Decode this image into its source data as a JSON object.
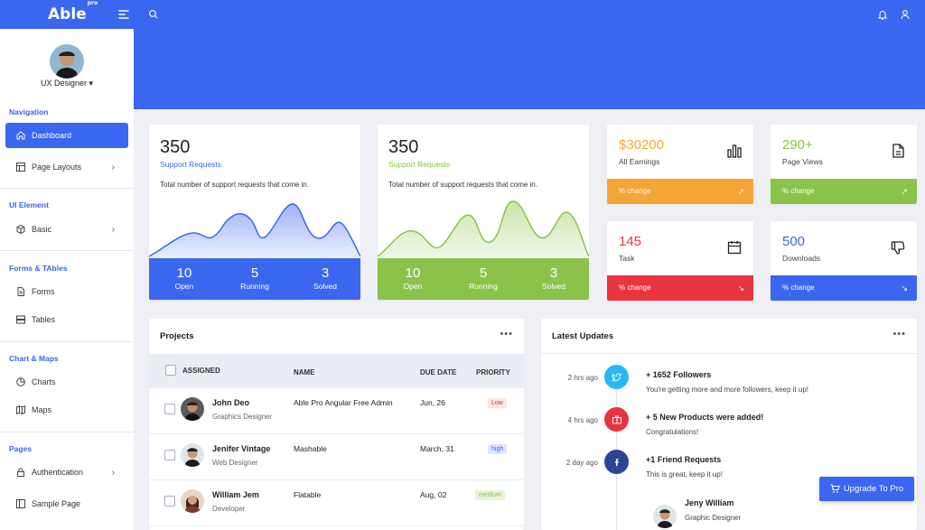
{
  "app": {
    "logo": "Able",
    "logo_badge": "pro"
  },
  "user": {
    "name": "UX Designer ▾"
  },
  "sidebar": {
    "sections": [
      {
        "caption": "Navigation",
        "items": [
          {
            "label": "Dashboard",
            "active": true
          },
          {
            "label": "Page Layouts",
            "has_children": true
          }
        ]
      },
      {
        "caption": "UI Element",
        "items": [
          {
            "label": "Basic",
            "has_children": true
          }
        ]
      },
      {
        "caption": "Forms & TAbles",
        "items": [
          {
            "label": "Forms"
          },
          {
            "label": "Tables"
          }
        ]
      },
      {
        "caption": "Chart & Maps",
        "items": [
          {
            "label": "Charts"
          },
          {
            "label": "Maps"
          }
        ]
      },
      {
        "caption": "Pages",
        "items": [
          {
            "label": "Authentication",
            "has_children": true
          },
          {
            "label": "Sample Page"
          }
        ]
      }
    ]
  },
  "support_cards": [
    {
      "value": "350",
      "subtitle": "Support Requests",
      "description": "Total number of support requests that come in.",
      "color": "#3b66f0",
      "stats": [
        {
          "value": "10",
          "label": "Open"
        },
        {
          "value": "5",
          "label": "Running"
        },
        {
          "value": "3",
          "label": "Solved"
        }
      ]
    },
    {
      "value": "350",
      "subtitle": "Support Requests",
      "description": "Total number of support requests that come in.",
      "color": "#8bc34a",
      "stats": [
        {
          "value": "10",
          "label": "Open"
        },
        {
          "value": "5",
          "label": "Running"
        },
        {
          "value": "3",
          "label": "Solved"
        }
      ]
    }
  ],
  "mini_cards": [
    {
      "value": "$30200",
      "label": "All Earnings",
      "footer": "% change",
      "color": "#f4a536",
      "icon": "bar-chart-icon"
    },
    {
      "value": "290+",
      "label": "Page Views",
      "footer": "% change",
      "color": "#8bc34a",
      "icon": "file-text-icon"
    },
    {
      "value": "145",
      "label": "Task",
      "footer": "% change",
      "color": "#e8343f",
      "icon": "calendar-icon"
    },
    {
      "value": "500",
      "label": "Downloads",
      "footer": "% change",
      "color": "#3b66f0",
      "icon": "thumbs-down-icon"
    }
  ],
  "projects": {
    "title": "Projects",
    "menu": "•••",
    "columns": {
      "assigned": "ASSIGNED",
      "name": "NAME",
      "due": "DUE DATE",
      "priority": "PRIORITY"
    },
    "rows": [
      {
        "person": "John Deo",
        "role": "Graphics Designer",
        "project": "Able Pro Angular Free Admin",
        "due": "Jun, 26",
        "priority": "Low"
      },
      {
        "person": "Jenifer Vintage",
        "role": "Web Designer",
        "project": "Mashable",
        "due": "March, 31",
        "priority": "high"
      },
      {
        "person": "William Jem",
        "role": "Developer",
        "project": "Flatable",
        "due": "Aug, 02",
        "priority": "medium"
      }
    ]
  },
  "updates": {
    "title": "Latest Updates",
    "menu": "•••",
    "items": [
      {
        "time": "2 hrs ago",
        "title": "+ 1652 Followers",
        "desc": "You're getting more and more followers, keep it up!",
        "color": "#29b6f6",
        "icon": "twitter-icon"
      },
      {
        "time": "4 hrs ago",
        "title": "+ 5 New Products were added!",
        "desc": "Congratulations!",
        "color": "#e8343f",
        "icon": "briefcase-icon"
      },
      {
        "time": "2 day ago",
        "title": "+1 Friend Requests",
        "desc": "This is great, keep it up!",
        "color": "#2c4596",
        "icon": "facebook-icon"
      }
    ],
    "friend": {
      "name": "Jeny William",
      "role": "Graphic Designer"
    }
  },
  "upgrade_label": "Upgrade To Pro"
}
